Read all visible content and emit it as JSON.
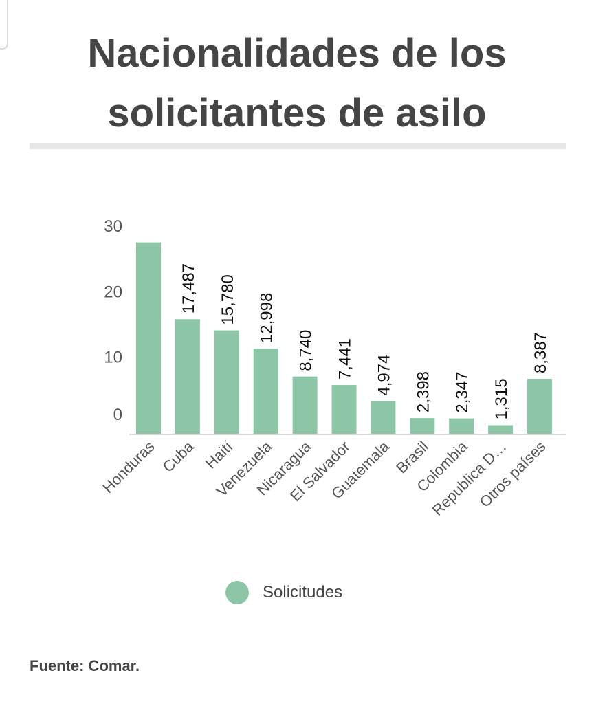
{
  "title_lines": [
    "Nacionalidades de los",
    "solicitantes de asilo"
  ],
  "chart_data": {
    "type": "bar",
    "categories": [
      "Honduras",
      "Cuba",
      "Haití",
      "Venezuela",
      "Nicaragua",
      "El Salvador",
      "Guatemala",
      "Brasil",
      "Colombia",
      "Republica D…",
      "Otros países"
    ],
    "values": [
      29.2,
      17.487,
      15.78,
      12.998,
      8.74,
      7.441,
      4.974,
      2.398,
      2.347,
      1.315,
      8.387
    ],
    "data_labels": [
      "",
      "17,487",
      "15,780",
      "12,998",
      "8,740",
      "7,441",
      "4,974",
      "2,398",
      "2,347",
      "1,315",
      "8,387"
    ],
    "yticks": [
      "0",
      "10",
      "20",
      "30"
    ],
    "ylim": [
      0,
      30
    ],
    "series_name": "Solicitudes",
    "bar_color": "#8dc5a7",
    "axis_color": "#d9d9d9",
    "legend_position": "bottom"
  },
  "source": {
    "text": "Fuente:  Comar."
  }
}
